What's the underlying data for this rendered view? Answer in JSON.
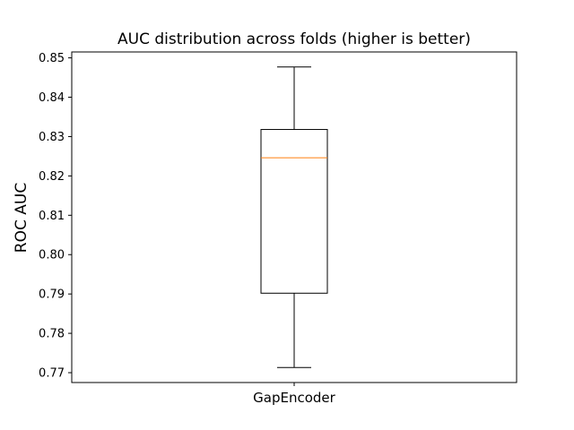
{
  "chart_data": {
    "type": "box",
    "title": "AUC distribution across folds (higher is better)",
    "xlabel": "",
    "ylabel": "ROC AUC",
    "ylim": [
      0.7675,
      0.8515
    ],
    "yticks": [
      0.77,
      0.78,
      0.79,
      0.8,
      0.81,
      0.82,
      0.83,
      0.84,
      0.85
    ],
    "ytick_labels": [
      "0.77",
      "0.78",
      "0.79",
      "0.80",
      "0.81",
      "0.82",
      "0.83",
      "0.84",
      "0.85"
    ],
    "categories": [
      "GapEncoder"
    ],
    "boxes": [
      {
        "category": "GapEncoder",
        "whisker_low": 0.7713,
        "q1": 0.7902,
        "median": 0.8246,
        "q3": 0.8318,
        "whisker_high": 0.8477
      }
    ],
    "grid": false,
    "colors": {
      "box": "#000000",
      "median": "#ff7f0e"
    }
  }
}
